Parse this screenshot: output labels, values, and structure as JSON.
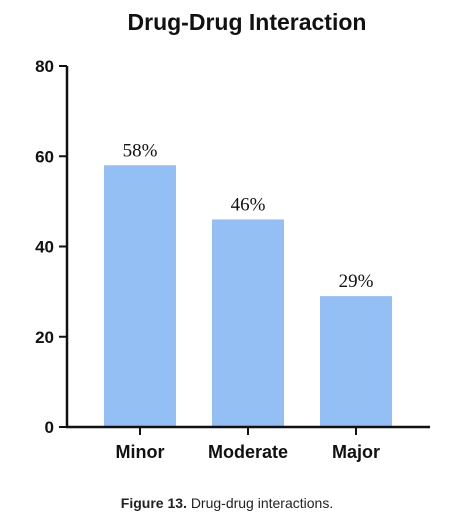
{
  "caption": {
    "label": "Figure 13.",
    "text": "Drug-drug interactions."
  },
  "chart_data": {
    "type": "bar",
    "title": "Drug-Drug Interaction",
    "xlabel": "",
    "ylabel": "",
    "categories": [
      "Minor",
      "Moderate",
      "Major"
    ],
    "values": [
      58,
      46,
      29
    ],
    "data_labels": [
      "58%",
      "46%",
      "29%"
    ],
    "ylim": [
      0,
      80
    ],
    "yticks": [
      0,
      20,
      40,
      60,
      80
    ],
    "grid": false,
    "legend": "none",
    "bar_color": "#93bff5",
    "axis_color": "#111111"
  }
}
